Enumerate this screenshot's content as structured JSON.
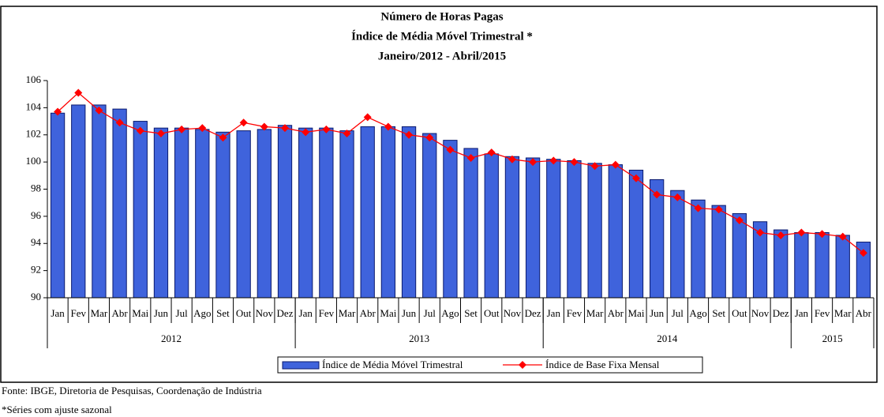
{
  "chart_data": {
    "type": "bar_line",
    "title_lines": [
      "Número de Horas Pagas",
      "Índice de Média Móvel Trimestral *",
      "Janeiro/2012 - Abril/2015"
    ],
    "categories": [
      "Jan",
      "Fev",
      "Mar",
      "Abr",
      "Mai",
      "Jun",
      "Jul",
      "Ago",
      "Set",
      "Out",
      "Nov",
      "Dez",
      "Jan",
      "Fev",
      "Mar",
      "Abr",
      "Mai",
      "Jun",
      "Jul",
      "Ago",
      "Set",
      "Out",
      "Nov",
      "Dez",
      "Jan",
      "Fev",
      "Mar",
      "Abr",
      "Mai",
      "Jun",
      "Jul",
      "Ago",
      "Set",
      "Out",
      "Nov",
      "Dez",
      "Jan",
      "Fev",
      "Mar",
      "Abr"
    ],
    "year_groups": [
      {
        "label": "2012",
        "months": 12
      },
      {
        "label": "2013",
        "months": 12
      },
      {
        "label": "2014",
        "months": 12
      },
      {
        "label": "2015",
        "months": 4
      }
    ],
    "series": [
      {
        "name": "Índice de Média Móvel Trimestral",
        "kind": "bar",
        "color": "#3f63dc",
        "values": [
          103.6,
          104.2,
          104.2,
          103.9,
          103.0,
          102.5,
          102.5,
          102.4,
          102.2,
          102.3,
          102.4,
          102.7,
          102.5,
          102.5,
          102.3,
          102.6,
          102.6,
          102.6,
          102.1,
          101.6,
          101.0,
          100.6,
          100.4,
          100.3,
          100.2,
          100.1,
          99.9,
          99.8,
          99.4,
          98.7,
          97.9,
          97.2,
          96.8,
          96.2,
          95.6,
          95.0,
          94.8,
          94.8,
          94.6,
          94.1
        ]
      },
      {
        "name": "Índice de Base Fixa Mensal",
        "kind": "line",
        "color": "#ff0000",
        "values": [
          103.7,
          105.1,
          103.8,
          102.9,
          102.3,
          102.1,
          102.4,
          102.5,
          101.8,
          102.9,
          102.6,
          102.5,
          102.2,
          102.4,
          102.1,
          103.3,
          102.6,
          102.0,
          101.8,
          100.9,
          100.3,
          100.7,
          100.2,
          100.0,
          100.1,
          100.0,
          99.7,
          99.8,
          98.8,
          97.6,
          97.4,
          96.6,
          96.5,
          95.7,
          94.8,
          94.6,
          94.8,
          94.7,
          94.5,
          93.3
        ]
      }
    ],
    "ylim": [
      90,
      106
    ],
    "yticks": [
      90,
      92,
      94,
      96,
      98,
      100,
      102,
      104,
      106
    ],
    "source": "Fonte: IBGE, Diretoria de Pesquisas, Coordenação de Indústria",
    "note": "*Séries com ajuste sazonal"
  }
}
